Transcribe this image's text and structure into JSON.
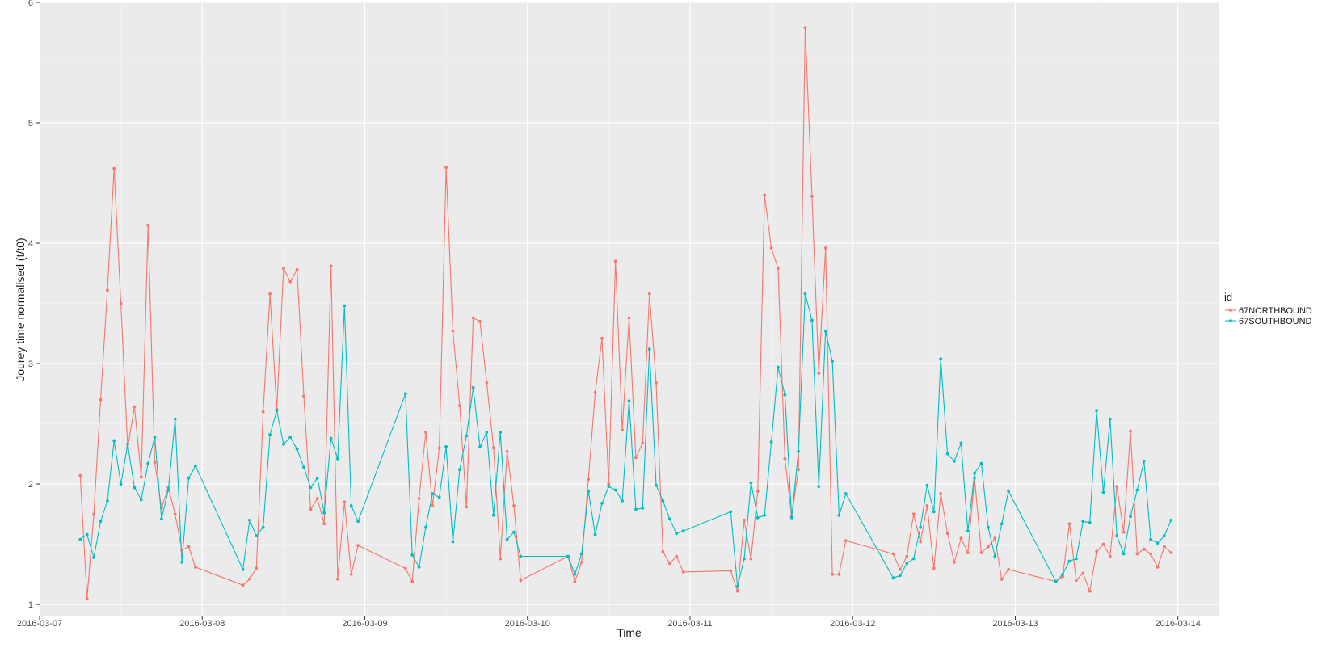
{
  "chart_data": {
    "type": "line",
    "title": "",
    "xlabel": "Time",
    "ylabel": "Jourey time normalised (t/t0)",
    "xlim": [
      "2016-03-07T00:00",
      "2016-03-14T06:00"
    ],
    "ylim": [
      0.9,
      6.0
    ],
    "grid": true,
    "legend": {
      "title": "id",
      "position": "right"
    },
    "x_ticks": [
      "2016-03-07",
      "2016-03-08",
      "2016-03-09",
      "2016-03-10",
      "2016-03-11",
      "2016-03-12",
      "2016-03-13",
      "2016-03-14"
    ],
    "y_ticks": [
      1,
      2,
      3,
      4,
      5,
      6
    ],
    "series": [
      {
        "name": "67NORTHBOUND",
        "color": "#F8766D",
        "points": [
          [
            "2016-03-07T06:00",
            2.07
          ],
          [
            "2016-03-07T07:00",
            1.05
          ],
          [
            "2016-03-07T08:00",
            1.75
          ],
          [
            "2016-03-07T09:00",
            2.7
          ],
          [
            "2016-03-07T10:00",
            3.61
          ],
          [
            "2016-03-07T11:00",
            4.62
          ],
          [
            "2016-03-07T12:00",
            3.5
          ],
          [
            "2016-03-07T13:00",
            2.3
          ],
          [
            "2016-03-07T14:00",
            2.64
          ],
          [
            "2016-03-07T15:00",
            2.06
          ],
          [
            "2016-03-07T16:00",
            4.15
          ],
          [
            "2016-03-07T17:00",
            2.18
          ],
          [
            "2016-03-07T18:00",
            1.8
          ],
          [
            "2016-03-07T19:00",
            1.97
          ],
          [
            "2016-03-07T20:00",
            1.75
          ],
          [
            "2016-03-07T21:00",
            1.45
          ],
          [
            "2016-03-07T22:00",
            1.48
          ],
          [
            "2016-03-07T23:00",
            1.31
          ],
          [
            "2016-03-08T06:00",
            1.16
          ],
          [
            "2016-03-08T07:00",
            1.21
          ],
          [
            "2016-03-08T08:00",
            1.3
          ],
          [
            "2016-03-08T09:00",
            2.6
          ],
          [
            "2016-03-08T10:00",
            3.58
          ],
          [
            "2016-03-08T11:00",
            2.62
          ],
          [
            "2016-03-08T12:00",
            3.79
          ],
          [
            "2016-03-08T13:00",
            3.68
          ],
          [
            "2016-03-08T14:00",
            3.78
          ],
          [
            "2016-03-08T15:00",
            2.73
          ],
          [
            "2016-03-08T16:00",
            1.79
          ],
          [
            "2016-03-08T17:00",
            1.88
          ],
          [
            "2016-03-08T18:00",
            1.67
          ],
          [
            "2016-03-08T19:00",
            3.81
          ],
          [
            "2016-03-08T20:00",
            1.21
          ],
          [
            "2016-03-08T21:00",
            1.85
          ],
          [
            "2016-03-08T22:00",
            1.25
          ],
          [
            "2016-03-08T23:00",
            1.49
          ],
          [
            "2016-03-09T06:00",
            1.3
          ],
          [
            "2016-03-09T07:00",
            1.19
          ],
          [
            "2016-03-09T08:00",
            1.88
          ],
          [
            "2016-03-09T09:00",
            2.43
          ],
          [
            "2016-03-09T10:00",
            1.82
          ],
          [
            "2016-03-09T11:00",
            2.3
          ],
          [
            "2016-03-09T12:00",
            4.63
          ],
          [
            "2016-03-09T13:00",
            3.27
          ],
          [
            "2016-03-09T14:00",
            2.65
          ],
          [
            "2016-03-09T15:00",
            1.81
          ],
          [
            "2016-03-09T16:00",
            3.38
          ],
          [
            "2016-03-09T17:00",
            3.35
          ],
          [
            "2016-03-09T18:00",
            2.84
          ],
          [
            "2016-03-09T19:00",
            2.3
          ],
          [
            "2016-03-09T20:00",
            1.38
          ],
          [
            "2016-03-09T21:00",
            2.27
          ],
          [
            "2016-03-09T22:00",
            1.82
          ],
          [
            "2016-03-09T23:00",
            1.2
          ],
          [
            "2016-03-10T06:00",
            1.4
          ],
          [
            "2016-03-10T07:00",
            1.19
          ],
          [
            "2016-03-10T08:00",
            1.35
          ],
          [
            "2016-03-10T09:00",
            2.04
          ],
          [
            "2016-03-10T10:00",
            2.76
          ],
          [
            "2016-03-10T11:00",
            3.21
          ],
          [
            "2016-03-10T12:00",
            2.0
          ],
          [
            "2016-03-10T13:00",
            3.85
          ],
          [
            "2016-03-10T14:00",
            2.45
          ],
          [
            "2016-03-10T15:00",
            3.38
          ],
          [
            "2016-03-10T16:00",
            2.22
          ],
          [
            "2016-03-10T17:00",
            2.34
          ],
          [
            "2016-03-10T18:00",
            3.58
          ],
          [
            "2016-03-10T19:00",
            2.84
          ],
          [
            "2016-03-10T20:00",
            1.44
          ],
          [
            "2016-03-10T21:00",
            1.34
          ],
          [
            "2016-03-10T22:00",
            1.4
          ],
          [
            "2016-03-10T23:00",
            1.27
          ],
          [
            "2016-03-11T06:00",
            1.28
          ],
          [
            "2016-03-11T07:00",
            1.11
          ],
          [
            "2016-03-11T08:00",
            1.7
          ],
          [
            "2016-03-11T09:00",
            1.38
          ],
          [
            "2016-03-11T10:00",
            1.94
          ],
          [
            "2016-03-11T11:00",
            4.4
          ],
          [
            "2016-03-11T12:00",
            3.96
          ],
          [
            "2016-03-11T13:00",
            3.79
          ],
          [
            "2016-03-11T14:00",
            2.21
          ],
          [
            "2016-03-11T15:00",
            1.73
          ],
          [
            "2016-03-11T16:00",
            2.12
          ],
          [
            "2016-03-11T17:00",
            5.79
          ],
          [
            "2016-03-11T18:00",
            4.39
          ],
          [
            "2016-03-11T19:00",
            2.92
          ],
          [
            "2016-03-11T20:00",
            3.96
          ],
          [
            "2016-03-11T21:00",
            1.25
          ],
          [
            "2016-03-11T22:00",
            1.25
          ],
          [
            "2016-03-11T23:00",
            1.53
          ],
          [
            "2016-03-12T06:00",
            1.42
          ],
          [
            "2016-03-12T07:00",
            1.29
          ],
          [
            "2016-03-12T08:00",
            1.4
          ],
          [
            "2016-03-12T09:00",
            1.75
          ],
          [
            "2016-03-12T10:00",
            1.52
          ],
          [
            "2016-03-12T11:00",
            1.82
          ],
          [
            "2016-03-12T12:00",
            1.3
          ],
          [
            "2016-03-12T13:00",
            1.92
          ],
          [
            "2016-03-12T14:00",
            1.59
          ],
          [
            "2016-03-12T15:00",
            1.35
          ],
          [
            "2016-03-12T16:00",
            1.55
          ],
          [
            "2016-03-12T17:00",
            1.43
          ],
          [
            "2016-03-12T18:00",
            2.05
          ],
          [
            "2016-03-12T19:00",
            1.43
          ],
          [
            "2016-03-12T20:00",
            1.48
          ],
          [
            "2016-03-12T21:00",
            1.55
          ],
          [
            "2016-03-12T22:00",
            1.21
          ],
          [
            "2016-03-12T23:00",
            1.29
          ],
          [
            "2016-03-13T06:00",
            1.19
          ],
          [
            "2016-03-13T07:00",
            1.23
          ],
          [
            "2016-03-13T08:00",
            1.67
          ],
          [
            "2016-03-13T09:00",
            1.2
          ],
          [
            "2016-03-13T10:00",
            1.26
          ],
          [
            "2016-03-13T11:00",
            1.11
          ],
          [
            "2016-03-13T12:00",
            1.44
          ],
          [
            "2016-03-13T13:00",
            1.5
          ],
          [
            "2016-03-13T14:00",
            1.4
          ],
          [
            "2016-03-13T15:00",
            1.98
          ],
          [
            "2016-03-13T16:00",
            1.6
          ],
          [
            "2016-03-13T17:00",
            2.44
          ],
          [
            "2016-03-13T18:00",
            1.42
          ],
          [
            "2016-03-13T19:00",
            1.46
          ],
          [
            "2016-03-13T20:00",
            1.42
          ],
          [
            "2016-03-13T21:00",
            1.31
          ],
          [
            "2016-03-13T22:00",
            1.48
          ],
          [
            "2016-03-13T23:00",
            1.43
          ]
        ]
      },
      {
        "name": "67SOUTHBOUND",
        "color": "#00BFC4",
        "points": [
          [
            "2016-03-07T06:00",
            1.54
          ],
          [
            "2016-03-07T07:00",
            1.58
          ],
          [
            "2016-03-07T08:00",
            1.39
          ],
          [
            "2016-03-07T09:00",
            1.69
          ],
          [
            "2016-03-07T10:00",
            1.86
          ],
          [
            "2016-03-07T11:00",
            2.36
          ],
          [
            "2016-03-07T12:00",
            2.0
          ],
          [
            "2016-03-07T13:00",
            2.33
          ],
          [
            "2016-03-07T14:00",
            1.97
          ],
          [
            "2016-03-07T15:00",
            1.87
          ],
          [
            "2016-03-07T16:00",
            2.17
          ],
          [
            "2016-03-07T17:00",
            2.39
          ],
          [
            "2016-03-07T18:00",
            1.71
          ],
          [
            "2016-03-07T19:00",
            1.95
          ],
          [
            "2016-03-07T20:00",
            2.54
          ],
          [
            "2016-03-07T21:00",
            1.35
          ],
          [
            "2016-03-07T22:00",
            2.05
          ],
          [
            "2016-03-07T23:00",
            2.15
          ],
          [
            "2016-03-08T06:00",
            1.29
          ],
          [
            "2016-03-08T07:00",
            1.7
          ],
          [
            "2016-03-08T08:00",
            1.57
          ],
          [
            "2016-03-08T09:00",
            1.64
          ],
          [
            "2016-03-08T10:00",
            2.41
          ],
          [
            "2016-03-08T11:00",
            2.61
          ],
          [
            "2016-03-08T12:00",
            2.33
          ],
          [
            "2016-03-08T13:00",
            2.39
          ],
          [
            "2016-03-08T14:00",
            2.29
          ],
          [
            "2016-03-08T15:00",
            2.14
          ],
          [
            "2016-03-08T16:00",
            1.97
          ],
          [
            "2016-03-08T17:00",
            2.05
          ],
          [
            "2016-03-08T18:00",
            1.76
          ],
          [
            "2016-03-08T19:00",
            2.38
          ],
          [
            "2016-03-08T20:00",
            2.21
          ],
          [
            "2016-03-08T21:00",
            3.48
          ],
          [
            "2016-03-08T22:00",
            1.82
          ],
          [
            "2016-03-08T23:00",
            1.69
          ],
          [
            "2016-03-09T06:00",
            2.75
          ],
          [
            "2016-03-09T07:00",
            1.41
          ],
          [
            "2016-03-09T08:00",
            1.31
          ],
          [
            "2016-03-09T09:00",
            1.64
          ],
          [
            "2016-03-09T10:00",
            1.92
          ],
          [
            "2016-03-09T11:00",
            1.89
          ],
          [
            "2016-03-09T12:00",
            2.31
          ],
          [
            "2016-03-09T13:00",
            1.52
          ],
          [
            "2016-03-09T14:00",
            2.12
          ],
          [
            "2016-03-09T15:00",
            2.4
          ],
          [
            "2016-03-09T16:00",
            2.8
          ],
          [
            "2016-03-09T17:00",
            2.31
          ],
          [
            "2016-03-09T18:00",
            2.43
          ],
          [
            "2016-03-09T19:00",
            1.74
          ],
          [
            "2016-03-09T20:00",
            2.43
          ],
          [
            "2016-03-09T21:00",
            1.54
          ],
          [
            "2016-03-09T22:00",
            1.6
          ],
          [
            "2016-03-09T23:00",
            1.4
          ],
          [
            "2016-03-10T06:00",
            1.4
          ],
          [
            "2016-03-10T07:00",
            1.25
          ],
          [
            "2016-03-10T08:00",
            1.42
          ],
          [
            "2016-03-10T09:00",
            1.94
          ],
          [
            "2016-03-10T10:00",
            1.58
          ],
          [
            "2016-03-10T11:00",
            1.84
          ],
          [
            "2016-03-10T12:00",
            1.98
          ],
          [
            "2016-03-10T13:00",
            1.95
          ],
          [
            "2016-03-10T14:00",
            1.86
          ],
          [
            "2016-03-10T15:00",
            2.69
          ],
          [
            "2016-03-10T16:00",
            1.79
          ],
          [
            "2016-03-10T17:00",
            1.8
          ],
          [
            "2016-03-10T18:00",
            3.12
          ],
          [
            "2016-03-10T19:00",
            1.99
          ],
          [
            "2016-03-10T20:00",
            1.86
          ],
          [
            "2016-03-10T21:00",
            1.71
          ],
          [
            "2016-03-10T22:00",
            1.59
          ],
          [
            "2016-03-10T23:00",
            1.61
          ],
          [
            "2016-03-11T06:00",
            1.77
          ],
          [
            "2016-03-11T07:00",
            1.15
          ],
          [
            "2016-03-11T08:00",
            1.38
          ],
          [
            "2016-03-11T09:00",
            2.01
          ],
          [
            "2016-03-11T10:00",
            1.72
          ],
          [
            "2016-03-11T11:00",
            1.74
          ],
          [
            "2016-03-11T12:00",
            2.35
          ],
          [
            "2016-03-11T13:00",
            2.97
          ],
          [
            "2016-03-11T14:00",
            2.74
          ],
          [
            "2016-03-11T15:00",
            1.72
          ],
          [
            "2016-03-11T16:00",
            2.27
          ],
          [
            "2016-03-11T17:00",
            3.58
          ],
          [
            "2016-03-11T18:00",
            3.36
          ],
          [
            "2016-03-11T19:00",
            1.98
          ],
          [
            "2016-03-11T20:00",
            3.27
          ],
          [
            "2016-03-11T21:00",
            3.02
          ],
          [
            "2016-03-11T22:00",
            1.74
          ],
          [
            "2016-03-11T23:00",
            1.92
          ],
          [
            "2016-03-12T06:00",
            1.22
          ],
          [
            "2016-03-12T07:00",
            1.24
          ],
          [
            "2016-03-12T08:00",
            1.34
          ],
          [
            "2016-03-12T09:00",
            1.38
          ],
          [
            "2016-03-12T10:00",
            1.64
          ],
          [
            "2016-03-12T11:00",
            1.99
          ],
          [
            "2016-03-12T12:00",
            1.77
          ],
          [
            "2016-03-12T13:00",
            3.04
          ],
          [
            "2016-03-12T14:00",
            2.25
          ],
          [
            "2016-03-12T15:00",
            2.19
          ],
          [
            "2016-03-12T16:00",
            2.34
          ],
          [
            "2016-03-12T17:00",
            1.61
          ],
          [
            "2016-03-12T18:00",
            2.09
          ],
          [
            "2016-03-12T19:00",
            2.17
          ],
          [
            "2016-03-12T20:00",
            1.64
          ],
          [
            "2016-03-12T21:00",
            1.4
          ],
          [
            "2016-03-12T22:00",
            1.67
          ],
          [
            "2016-03-12T23:00",
            1.94
          ],
          [
            "2016-03-13T06:00",
            1.19
          ],
          [
            "2016-03-13T07:00",
            1.25
          ],
          [
            "2016-03-13T08:00",
            1.36
          ],
          [
            "2016-03-13T09:00",
            1.38
          ],
          [
            "2016-03-13T10:00",
            1.69
          ],
          [
            "2016-03-13T11:00",
            1.68
          ],
          [
            "2016-03-13T12:00",
            2.61
          ],
          [
            "2016-03-13T13:00",
            1.93
          ],
          [
            "2016-03-13T14:00",
            2.54
          ],
          [
            "2016-03-13T15:00",
            1.57
          ],
          [
            "2016-03-13T16:00",
            1.42
          ],
          [
            "2016-03-13T17:00",
            1.73
          ],
          [
            "2016-03-13T18:00",
            1.95
          ],
          [
            "2016-03-13T19:00",
            2.19
          ],
          [
            "2016-03-13T20:00",
            1.54
          ],
          [
            "2016-03-13T21:00",
            1.51
          ],
          [
            "2016-03-13T22:00",
            1.57
          ],
          [
            "2016-03-13T23:00",
            1.7
          ]
        ]
      }
    ],
    "colors": {
      "panel_background": "#EBEBEB",
      "grid_major": "#FFFFFF",
      "tick_text": "#4D4D4D"
    }
  }
}
